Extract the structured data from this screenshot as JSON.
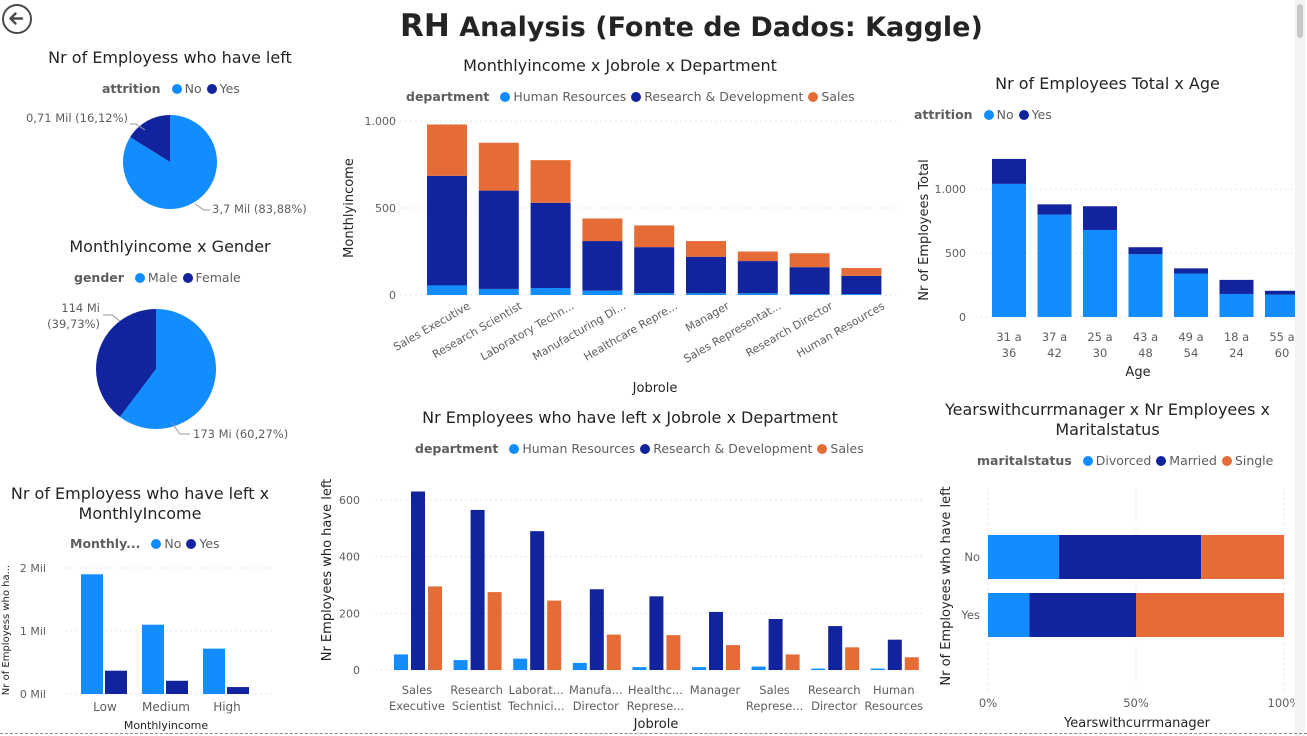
{
  "page": {
    "title_prefix": "RH",
    "title_rest": "Analysis (Fonte de Dados: Kaggle)",
    "back_icon": "arrow-left-circle-icon"
  },
  "colors": {
    "light": "#118DFF",
    "dark": "#12239E",
    "orange": "#E66C37",
    "grid": "#e6e6e6",
    "axis": "#605e5c"
  },
  "pie_attrition": {
    "title": "Nr of Employess who have left",
    "legend_title": "attrition",
    "legend": [
      "No",
      "Yes"
    ],
    "label_no": "3,7 Mil (83,88%)",
    "label_yes": "0,71 Mil (16,12%)"
  },
  "pie_gender": {
    "title": "Monthlyincome x Gender",
    "legend_title": "gender",
    "legend": [
      "Male",
      "Female"
    ],
    "label_male": "173 Mi (60,27%)",
    "label_female_1": "114 Mi",
    "label_female_2": "(39,73%)"
  },
  "left_bottom": {
    "title_1": "Nr of Employess who have left x",
    "title_2": "MonthlyIncome",
    "legend_title": "Monthly...",
    "legend": [
      "No",
      "Yes"
    ],
    "ylabel": "Nr of Employess who ha...",
    "xlabel": "Monthlyincome",
    "ticks": [
      "2 Mil",
      "1 Mil",
      "0 Mil"
    ]
  },
  "center_top": {
    "title": "Monthlyincome x Jobrole x Department",
    "legend_title": "department",
    "legend": [
      "Human Resources",
      "Research & Development",
      "Sales"
    ],
    "ylabel": "Monthlyincome",
    "xlabel": "Jobrole",
    "ticks": [
      "1.000",
      "500",
      "0"
    ]
  },
  "center_bottom": {
    "title": "Nr Employees who have left x Jobrole x Department",
    "legend_title": "department",
    "legend": [
      "Human Resources",
      "Research & Development",
      "Sales"
    ],
    "ylabel": "Nr Employees who have left",
    "xlabel": "Jobrole",
    "ticks": [
      "600",
      "400",
      "200",
      "0"
    ]
  },
  "right_top": {
    "title": "Nr of Employees Total x Age",
    "legend_title": "attrition",
    "legend": [
      "No",
      "Yes"
    ],
    "ylabel": "Nr of Employees Total",
    "xlabel": "Age",
    "ticks": [
      "1.000",
      "500",
      "0"
    ]
  },
  "right_bottom": {
    "title_1": "Yearswithcurrmanager x Nr Employees x",
    "title_2": "Maritalstatus",
    "legend_title": "maritalstatus",
    "legend": [
      "Divorced",
      "Married",
      "Single"
    ],
    "ylabel": "Nr of Employees who have left",
    "xlabel": "Yearswithcurrmanager",
    "ticks": [
      "0%",
      "50%",
      "100%"
    ]
  },
  "chart_data": [
    {
      "type": "pie",
      "title": "Nr of Employess who have left",
      "categories": [
        "No",
        "Yes"
      ],
      "values": [
        3.7,
        0.71
      ],
      "labels": [
        "3,7 Mil (83,88%)",
        "0,71 Mil (16,12%)"
      ]
    },
    {
      "type": "pie",
      "title": "Monthlyincome x Gender",
      "categories": [
        "Male",
        "Female"
      ],
      "values": [
        173,
        114
      ],
      "labels": [
        "173 Mi (60,27%)",
        "114 Mi (39,73%)"
      ]
    },
    {
      "type": "bar",
      "title": "Nr of Employess who have left x MonthlyIncome",
      "categories": [
        "Low",
        "Medium",
        "High"
      ],
      "series": [
        {
          "name": "No",
          "values": [
            1.9,
            1.1,
            0.72
          ]
        },
        {
          "name": "Yes",
          "values": [
            0.37,
            0.21,
            0.11
          ]
        }
      ],
      "ylim": [
        0,
        2
      ],
      "xlabel": "Monthlyincome",
      "ylabel": "Nr of Employess who ha..."
    },
    {
      "type": "bar",
      "stacked": true,
      "title": "Monthlyincome x Jobrole x Department",
      "categories": [
        "Sales Executive",
        "Research Scientist",
        "Laboratory Techn...",
        "Manufacturing Di...",
        "Healthcare Repre...",
        "Manager",
        "Sales Representat...",
        "Research Director",
        "Human Resources"
      ],
      "series": [
        {
          "name": "Human Resources",
          "values": [
            55,
            35,
            40,
            25,
            10,
            10,
            10,
            5,
            5
          ]
        },
        {
          "name": "Research & Development",
          "values": [
            630,
            565,
            490,
            285,
            265,
            210,
            185,
            155,
            105
          ]
        },
        {
          "name": "Sales",
          "values": [
            295,
            275,
            245,
            130,
            125,
            90,
            55,
            80,
            45
          ]
        }
      ],
      "ylim": [
        0,
        1000
      ],
      "xlabel": "Jobrole",
      "ylabel": "Monthlyincome"
    },
    {
      "type": "bar",
      "title": "Nr Employees who have left x Jobrole x Department",
      "categories": [
        "Sales Executive",
        "Research Scientist",
        "Laborat... Technici...",
        "Manufa... Director",
        "Healthc... Represe...",
        "Manager",
        "Sales Represe...",
        "Research Director",
        "Human Resources"
      ],
      "series": [
        {
          "name": "Human Resources",
          "values": [
            55,
            35,
            40,
            25,
            10,
            10,
            12,
            5,
            5
          ]
        },
        {
          "name": "Research & Development",
          "values": [
            630,
            565,
            490,
            285,
            260,
            205,
            180,
            155,
            107
          ]
        },
        {
          "name": "Sales",
          "values": [
            295,
            275,
            245,
            125,
            123,
            88,
            55,
            80,
            45
          ]
        }
      ],
      "ylim": [
        0,
        700
      ],
      "xlabel": "Jobrole",
      "ylabel": "Nr Employees who have left"
    },
    {
      "type": "bar",
      "stacked": true,
      "title": "Nr of Employees Total x Age",
      "categories": [
        "31 a 36",
        "37 a 42",
        "25 a 30",
        "43 a 48",
        "49 a 54",
        "18 a 24",
        "55 a 60"
      ],
      "series": [
        {
          "name": "No",
          "values": [
            1040,
            800,
            680,
            490,
            340,
            180,
            175
          ]
        },
        {
          "name": "Yes",
          "values": [
            195,
            80,
            185,
            55,
            40,
            110,
            30
          ]
        }
      ],
      "ylim": [
        0,
        1250
      ],
      "xlabel": "Age",
      "ylabel": "Nr of Employees Total"
    },
    {
      "type": "bar",
      "stacked": true,
      "orientation": "horizontal",
      "percent": true,
      "title": "Yearswithcurrmanager x Nr Employees x Maritalstatus",
      "categories": [
        "No",
        "Yes"
      ],
      "series": [
        {
          "name": "Divorced",
          "values": [
            24,
            14
          ]
        },
        {
          "name": "Married",
          "values": [
            48,
            36
          ]
        },
        {
          "name": "Single",
          "values": [
            28,
            50
          ]
        }
      ],
      "xlim": [
        0,
        100
      ],
      "xlabel": "Yearswithcurrmanager",
      "ylabel": "Nr of Employees who have left"
    }
  ]
}
